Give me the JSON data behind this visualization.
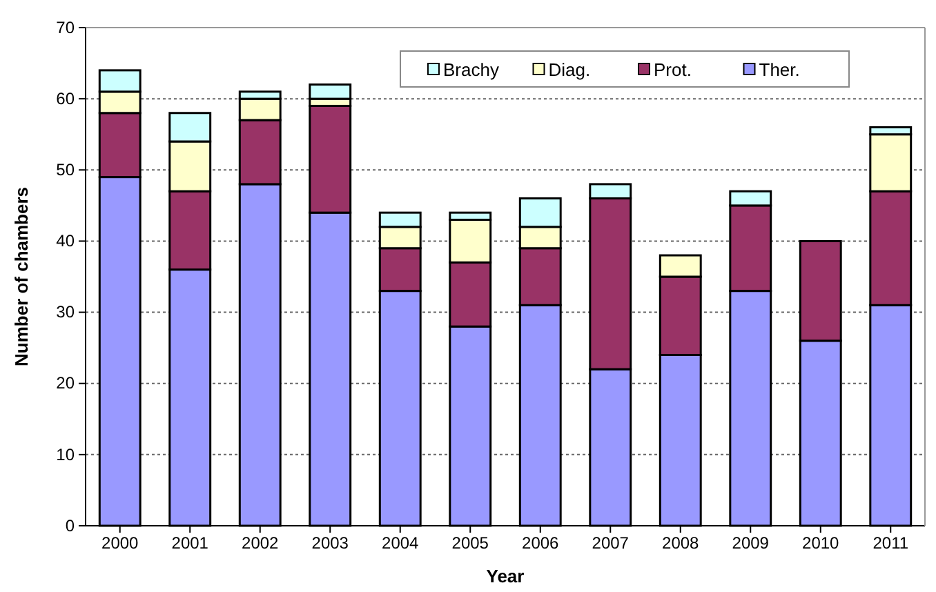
{
  "chart_data": {
    "type": "bar",
    "stacked": true,
    "xlabel": "Year",
    "ylabel": "Number of chambers",
    "categories": [
      "2000",
      "2001",
      "2002",
      "2003",
      "2004",
      "2005",
      "2006",
      "2007",
      "2008",
      "2009",
      "2010",
      "2011"
    ],
    "series": [
      {
        "name": "Ther.",
        "color": "#9999ff",
        "values": [
          49,
          36,
          48,
          44,
          33,
          28,
          31,
          22,
          24,
          33,
          26,
          31
        ]
      },
      {
        "name": "Prot.",
        "color": "#993366",
        "values": [
          9,
          11,
          9,
          15,
          6,
          9,
          8,
          24,
          11,
          12,
          14,
          16
        ]
      },
      {
        "name": "Diag.",
        "color": "#ffffcc",
        "values": [
          3,
          7,
          3,
          1,
          3,
          6,
          3,
          0,
          3,
          0,
          0,
          8
        ]
      },
      {
        "name": "Brachy",
        "color": "#ccffff",
        "values": [
          3,
          4,
          1,
          2,
          2,
          1,
          4,
          2,
          0,
          2,
          0,
          1
        ]
      }
    ],
    "ylim": [
      0,
      70
    ],
    "yticks": [
      0,
      10,
      20,
      30,
      40,
      50,
      60,
      70
    ],
    "grid": "y",
    "legend": "top right"
  }
}
